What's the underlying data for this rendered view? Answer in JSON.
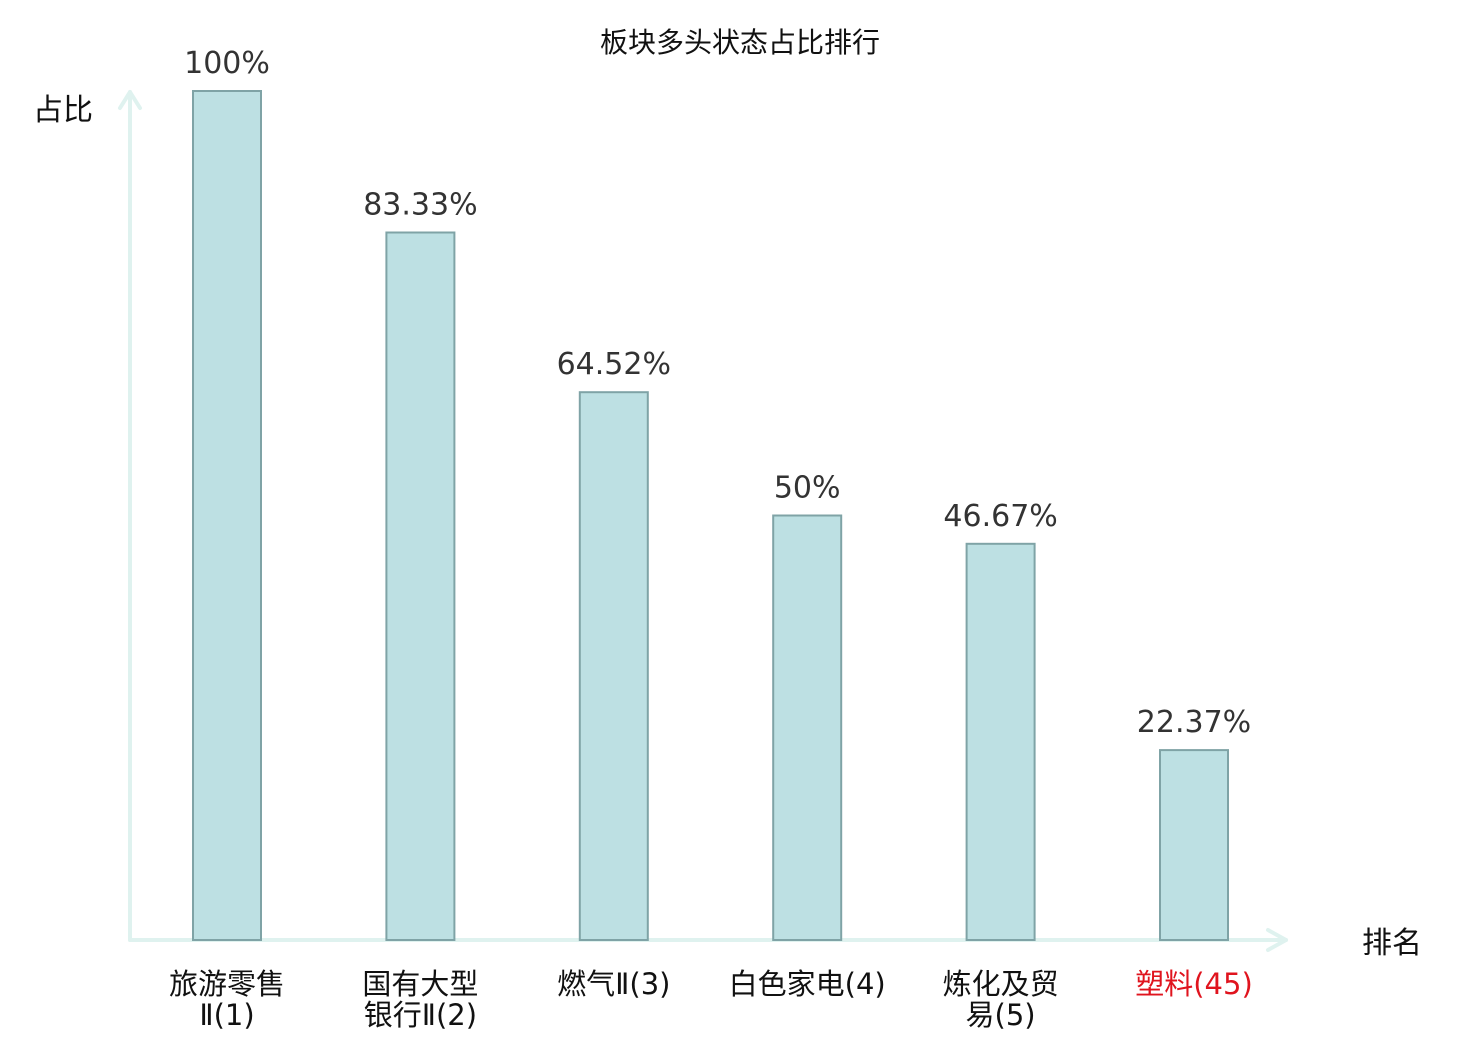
{
  "chart_data": {
    "type": "bar",
    "title": "板块多头状态占比排行",
    "ylabel": "占比",
    "xlabel": "排名",
    "ylim": [
      0,
      100
    ],
    "categories": [
      {
        "lines": [
          "旅游零售",
          "Ⅱ(1)"
        ],
        "highlight": false
      },
      {
        "lines": [
          "国有大型",
          "银行Ⅱ(2)"
        ],
        "highlight": false
      },
      {
        "lines": [
          "燃气Ⅱ(3)"
        ],
        "highlight": false
      },
      {
        "lines": [
          "白色家电(4)"
        ],
        "highlight": false
      },
      {
        "lines": [
          "炼化及贸",
          "易(5)"
        ],
        "highlight": false
      },
      {
        "lines": [
          "塑料(45)"
        ],
        "highlight": true
      }
    ],
    "values": [
      100,
      83.33,
      64.52,
      50,
      46.67,
      22.37
    ],
    "value_labels": [
      "100%",
      "83.33%",
      "64.52%",
      "50%",
      "46.67%",
      "22.37%"
    ],
    "grid": false,
    "legend": "none"
  },
  "colors": {
    "bar_fill": "#bde0e3",
    "bar_stroke": "#7fa3a6",
    "axis": "#dff2ef",
    "text": "#111111",
    "value_text": "#333333",
    "highlight_text": "#e0141e"
  }
}
